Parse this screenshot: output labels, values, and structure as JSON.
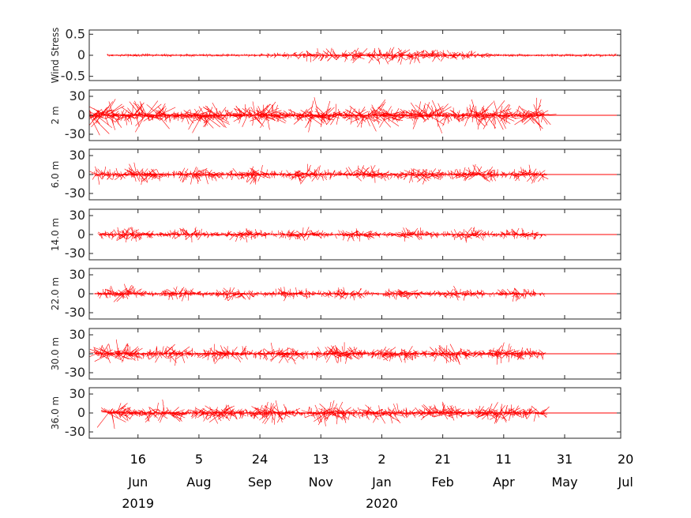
{
  "chart_data": {
    "type": "stick-plot",
    "color": "#ff0000",
    "x_range_days": [
      0,
      436
    ],
    "x_ticks": [
      {
        "day": 40,
        "label": "16",
        "month": "Jun"
      },
      {
        "day": 90,
        "label": "5",
        "month": "Aug"
      },
      {
        "day": 140,
        "label": "24",
        "month": "Sep"
      },
      {
        "day": 190,
        "label": "13",
        "month": "Nov"
      },
      {
        "day": 240,
        "label": "2",
        "month": "Jan"
      },
      {
        "day": 290,
        "label": "21",
        "month": "Feb"
      },
      {
        "day": 340,
        "label": "11",
        "month": "Apr"
      },
      {
        "day": 390,
        "label": "31",
        "month": "May"
      },
      {
        "day": 440,
        "label": "20",
        "month": "Jul"
      }
    ],
    "year_labels": [
      {
        "day": 40,
        "label": "2019"
      },
      {
        "day": 240,
        "label": "2020"
      }
    ],
    "panels": [
      {
        "ylabel": "Wind Stress",
        "ylim": [
          -0.6,
          0.6
        ],
        "yticks": [
          0.5,
          0,
          -0.5
        ],
        "ytick_labels": [
          "0.5",
          "0",
          "-0.5"
        ],
        "data_start": 15,
        "data_end": 436,
        "amp": 0.12
      },
      {
        "ylabel": "2 m",
        "ylim": [
          -40,
          40
        ],
        "yticks": [
          30,
          0,
          -30
        ],
        "ytick_labels": [
          "30",
          "0",
          "-30"
        ],
        "data_start": 0,
        "data_end": 373,
        "amp": 14
      },
      {
        "ylabel": "6.0 m",
        "ylim": [
          -40,
          40
        ],
        "yticks": [
          30,
          0,
          -30
        ],
        "ytick_labels": [
          "30",
          "0",
          "-30"
        ],
        "data_start": 5,
        "data_end": 373,
        "amp": 8
      },
      {
        "ylabel": "14.0 m",
        "ylim": [
          -40,
          40
        ],
        "yticks": [
          30,
          0,
          -30
        ],
        "ytick_labels": [
          "30",
          "0",
          "-30"
        ],
        "data_start": 8,
        "data_end": 373,
        "amp": 6
      },
      {
        "ylabel": "22.0 m",
        "ylim": [
          -40,
          40
        ],
        "yticks": [
          30,
          0,
          -30
        ],
        "ytick_labels": [
          "30",
          "0",
          "-30"
        ],
        "data_start": 5,
        "data_end": 373,
        "amp": 6
      },
      {
        "ylabel": "30.0 m",
        "ylim": [
          -40,
          40
        ],
        "yticks": [
          30,
          0,
          -30
        ],
        "ytick_labels": [
          "30",
          "0",
          "-30"
        ],
        "data_start": 5,
        "data_end": 373,
        "amp": 9
      },
      {
        "ylabel": "36.0 m",
        "ylim": [
          -40,
          40
        ],
        "yticks": [
          30,
          0,
          -30
        ],
        "ytick_labels": [
          "30",
          "0",
          "-30"
        ],
        "data_start": 15,
        "data_end": 373,
        "amp": 10
      }
    ]
  }
}
